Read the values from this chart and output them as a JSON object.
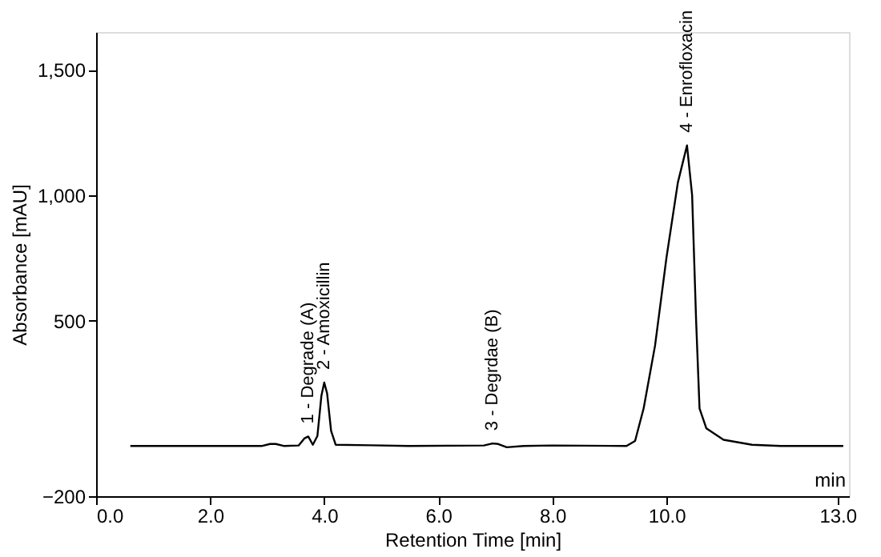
{
  "chart_data": {
    "type": "line",
    "xlabel": "Retention Time [min]",
    "ylabel": "Absorbance [mAU]",
    "x": [
      0.6,
      2.9,
      3.05,
      3.15,
      3.3,
      3.55,
      3.65,
      3.72,
      3.8,
      3.88,
      3.95,
      4.0,
      4.05,
      4.12,
      4.2,
      4.8,
      5.5,
      6.8,
      6.95,
      7.05,
      7.2,
      7.5,
      8.0,
      9.3,
      9.45,
      9.6,
      9.8,
      10.0,
      10.2,
      10.36,
      10.45,
      10.52,
      10.58,
      10.7,
      11.0,
      11.5,
      12.0,
      13.1
    ],
    "series": [
      {
        "color": "#000000",
        "values": [
          0,
          0,
          8,
          8,
          0,
          2,
          30,
          38,
          5,
          40,
          200,
          253,
          210,
          60,
          5,
          3,
          0,
          2,
          10,
          8,
          -5,
          0,
          2,
          0,
          20,
          150,
          400,
          750,
          1050,
          1198,
          1000,
          500,
          150,
          70,
          25,
          5,
          0,
          0
        ]
      }
    ],
    "xlim": [
      0,
      13.2
    ],
    "ylim": [
      -200,
      1650
    ],
    "xticks": [
      {
        "value": 0,
        "label": "0.0"
      },
      {
        "value": 2,
        "label": "2.0"
      },
      {
        "value": 4,
        "label": "4.0"
      },
      {
        "value": 6,
        "label": "6.0"
      },
      {
        "value": 8,
        "label": "8.0"
      },
      {
        "value": 10,
        "label": "10.0"
      },
      {
        "value": 13,
        "label": "13.0"
      }
    ],
    "yticks": [
      -200,
      500,
      {
        "value": 1000,
        "label": "1,000"
      },
      {
        "value": 1500,
        "label": "1,500"
      }
    ],
    "annotations": [
      {
        "text": "1 - Degrade (A)",
        "x": 3.72,
        "y": 38
      },
      {
        "text": "2 - Amoxicillin",
        "x": 4.0,
        "y": 253
      },
      {
        "text": "3 - Degrdae (B)",
        "x": 6.95,
        "y": 10
      },
      {
        "text": "4 - Enrofloxacin",
        "x": 10.36,
        "y": 1198
      },
      "min"
    ],
    "grid": false,
    "marker": "none",
    "line_style": "solid"
  }
}
